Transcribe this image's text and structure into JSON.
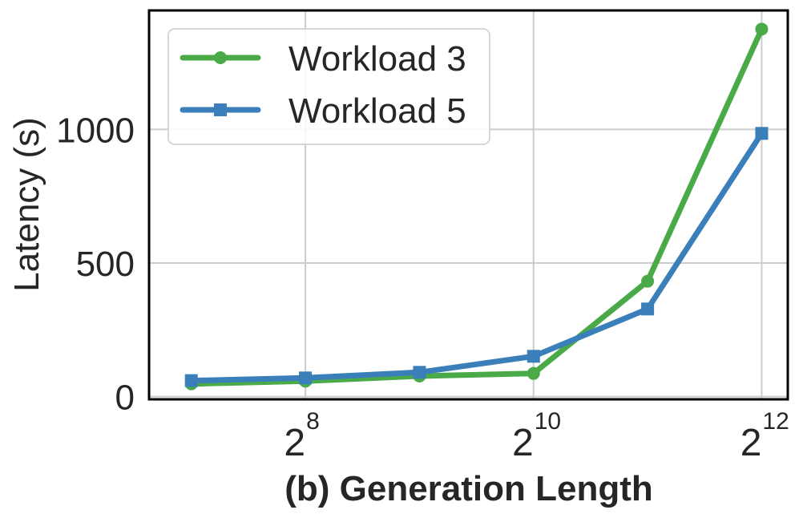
{
  "chart_data": {
    "type": "line",
    "title": "",
    "xlabel": "(b) Generation Length",
    "ylabel": "Latency (s)",
    "x": [
      128,
      256,
      512,
      1024,
      2048,
      4096
    ],
    "x_scale": "log2",
    "xlim": [
      99,
      4800
    ],
    "ylim": [
      -10,
      1445
    ],
    "x_ticks": [
      {
        "value": 256,
        "base": "2",
        "exp": "8"
      },
      {
        "value": 1024,
        "base": "2",
        "exp": "10"
      },
      {
        "value": 4096,
        "base": "2",
        "exp": "12"
      }
    ],
    "y_ticks": [
      {
        "value": 0,
        "label": "0"
      },
      {
        "value": 500,
        "label": "500"
      },
      {
        "value": 1000,
        "label": "1000"
      }
    ],
    "grid": true,
    "legend_position": "top-left",
    "series": [
      {
        "name": "Workload 3",
        "color": "#4aaa48",
        "marker": "circle",
        "values": [
          48,
          58,
          77,
          87,
          432,
          1375
        ]
      },
      {
        "name": "Workload 5",
        "color": "#3a7fba",
        "marker": "square",
        "values": [
          60,
          70,
          91,
          151,
          328,
          985
        ]
      }
    ]
  }
}
